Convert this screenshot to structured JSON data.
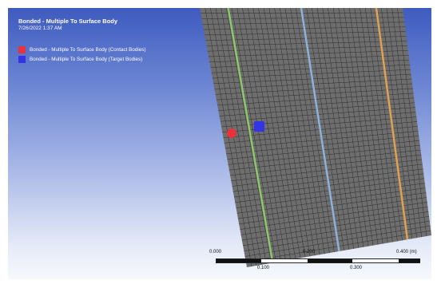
{
  "legend": {
    "title": "Bonded - Multiple To Surface Body",
    "timestamp": "7/26/2022 1:37 AM",
    "items": [
      {
        "label": "Bonded - Multiple To Surface Body (Contact Bodies)",
        "color": "#e8333b"
      },
      {
        "label": "Bonded - Multiple To Surface Body (Target Bodies)",
        "color": "#3434e6"
      }
    ]
  },
  "mesh": {
    "face_color": "#6e6e6e",
    "grid_color": "#2e2e2e",
    "edge_colors": [
      "#8cc86a",
      "#8db3dd",
      "#e3a24d"
    ],
    "markers": [
      {
        "name": "contact",
        "shape": "circle",
        "color": "#e8333b"
      },
      {
        "name": "target",
        "shape": "square",
        "color": "#3434e6"
      }
    ]
  },
  "scale_bar": {
    "top_labels": [
      "0.000",
      "0.200",
      "0.400 (m)"
    ],
    "bottom_labels": [
      "0.100",
      "0.300"
    ]
  }
}
